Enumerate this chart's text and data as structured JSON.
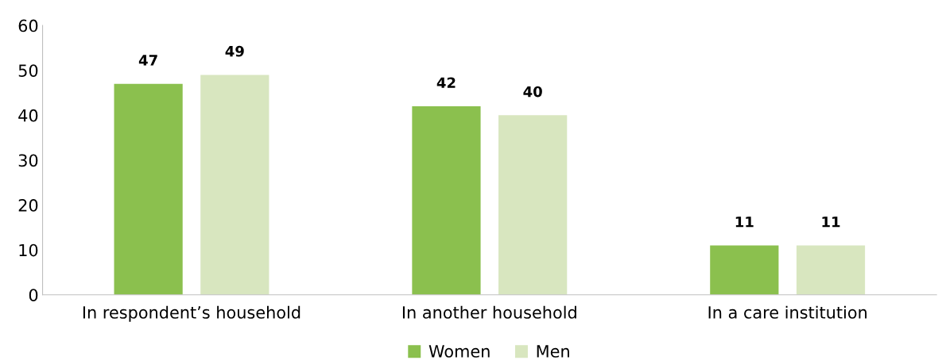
{
  "chart_data": {
    "type": "bar",
    "categories": [
      "In respondent’s household",
      "In another household",
      "In a care institution"
    ],
    "series": [
      {
        "name": "Women",
        "color": "#8bc04e",
        "values": [
          47,
          42,
          11
        ]
      },
      {
        "name": "Men",
        "color": "#d8e6bf",
        "values": [
          49,
          40,
          11
        ]
      }
    ],
    "ylim": [
      0,
      60
    ],
    "yticks": [
      0,
      10,
      20,
      30,
      40,
      50,
      60
    ],
    "data_labels": true,
    "legend": "bottom",
    "grid": false
  }
}
